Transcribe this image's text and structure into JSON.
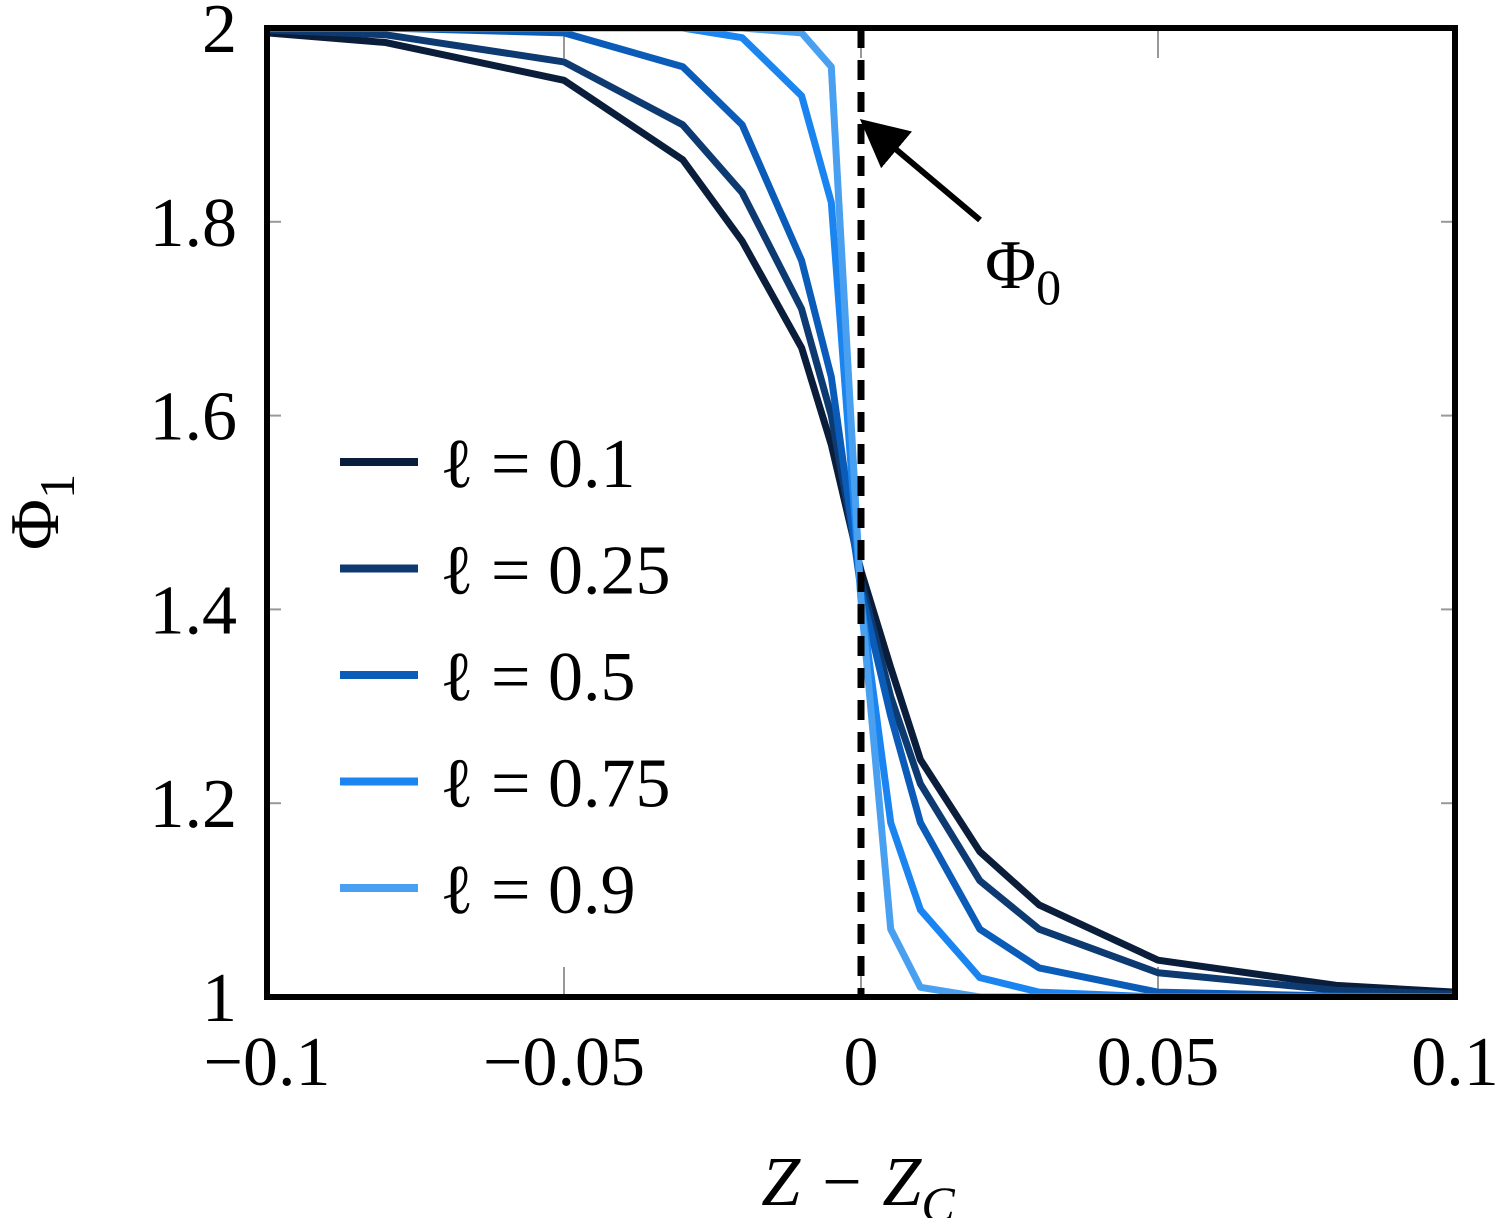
{
  "chart_data": {
    "type": "line",
    "y_label": [
      "Φ",
      "1"
    ],
    "x_label": [
      "Z − Z",
      "C"
    ],
    "annotation": [
      "Φ",
      "0"
    ],
    "vline_x": 0,
    "x": [
      -0.1,
      -0.08,
      -0.05,
      -0.03,
      -0.02,
      -0.01,
      -0.005,
      0,
      0.005,
      0.01,
      0.02,
      0.03,
      0.05,
      0.08,
      0.1
    ],
    "series": [
      {
        "name": "ℓ = 0.1",
        "color": "#0a1d3a",
        "values": [
          1.995,
          1.985,
          1.946,
          1.864,
          1.78,
          1.67,
          1.57,
          1.44,
          1.34,
          1.245,
          1.15,
          1.095,
          1.038,
          1.012,
          1.005
        ]
      },
      {
        "name": "ℓ = 0.25",
        "color": "#0d3a70",
        "values": [
          1.998,
          1.993,
          1.965,
          1.9,
          1.83,
          1.71,
          1.6,
          1.43,
          1.31,
          1.22,
          1.12,
          1.07,
          1.025,
          1.007,
          1.003
        ]
      },
      {
        "name": "ℓ = 0.5",
        "color": "#0a5cb8",
        "values": [
          2,
          2,
          1.995,
          1.96,
          1.9,
          1.76,
          1.64,
          1.42,
          1.29,
          1.18,
          1.07,
          1.03,
          1.005,
          1.001,
          1
        ]
      },
      {
        "name": "ℓ = 0.75",
        "color": "#1a85f0",
        "values": [
          2,
          2,
          2,
          2,
          1.99,
          1.93,
          1.82,
          1.41,
          1.18,
          1.09,
          1.02,
          1.005,
          1,
          1,
          1
        ]
      },
      {
        "name": "ℓ = 0.9",
        "color": "#4aa0f0",
        "values": [
          2,
          2,
          2,
          2,
          2,
          1.995,
          1.96,
          1.41,
          1.07,
          1.01,
          1,
          1,
          1,
          1,
          1
        ]
      }
    ],
    "xlim": [
      -0.1,
      0.1
    ],
    "ylim": [
      1,
      2
    ],
    "xticks": [
      {
        "value": -0.1,
        "label": "−0.1"
      },
      {
        "value": -0.05,
        "label": "−0.05"
      },
      0,
      0.05,
      0.1
    ],
    "yticks": [
      1,
      1.2,
      1.4,
      1.6,
      1.8,
      2
    ]
  }
}
